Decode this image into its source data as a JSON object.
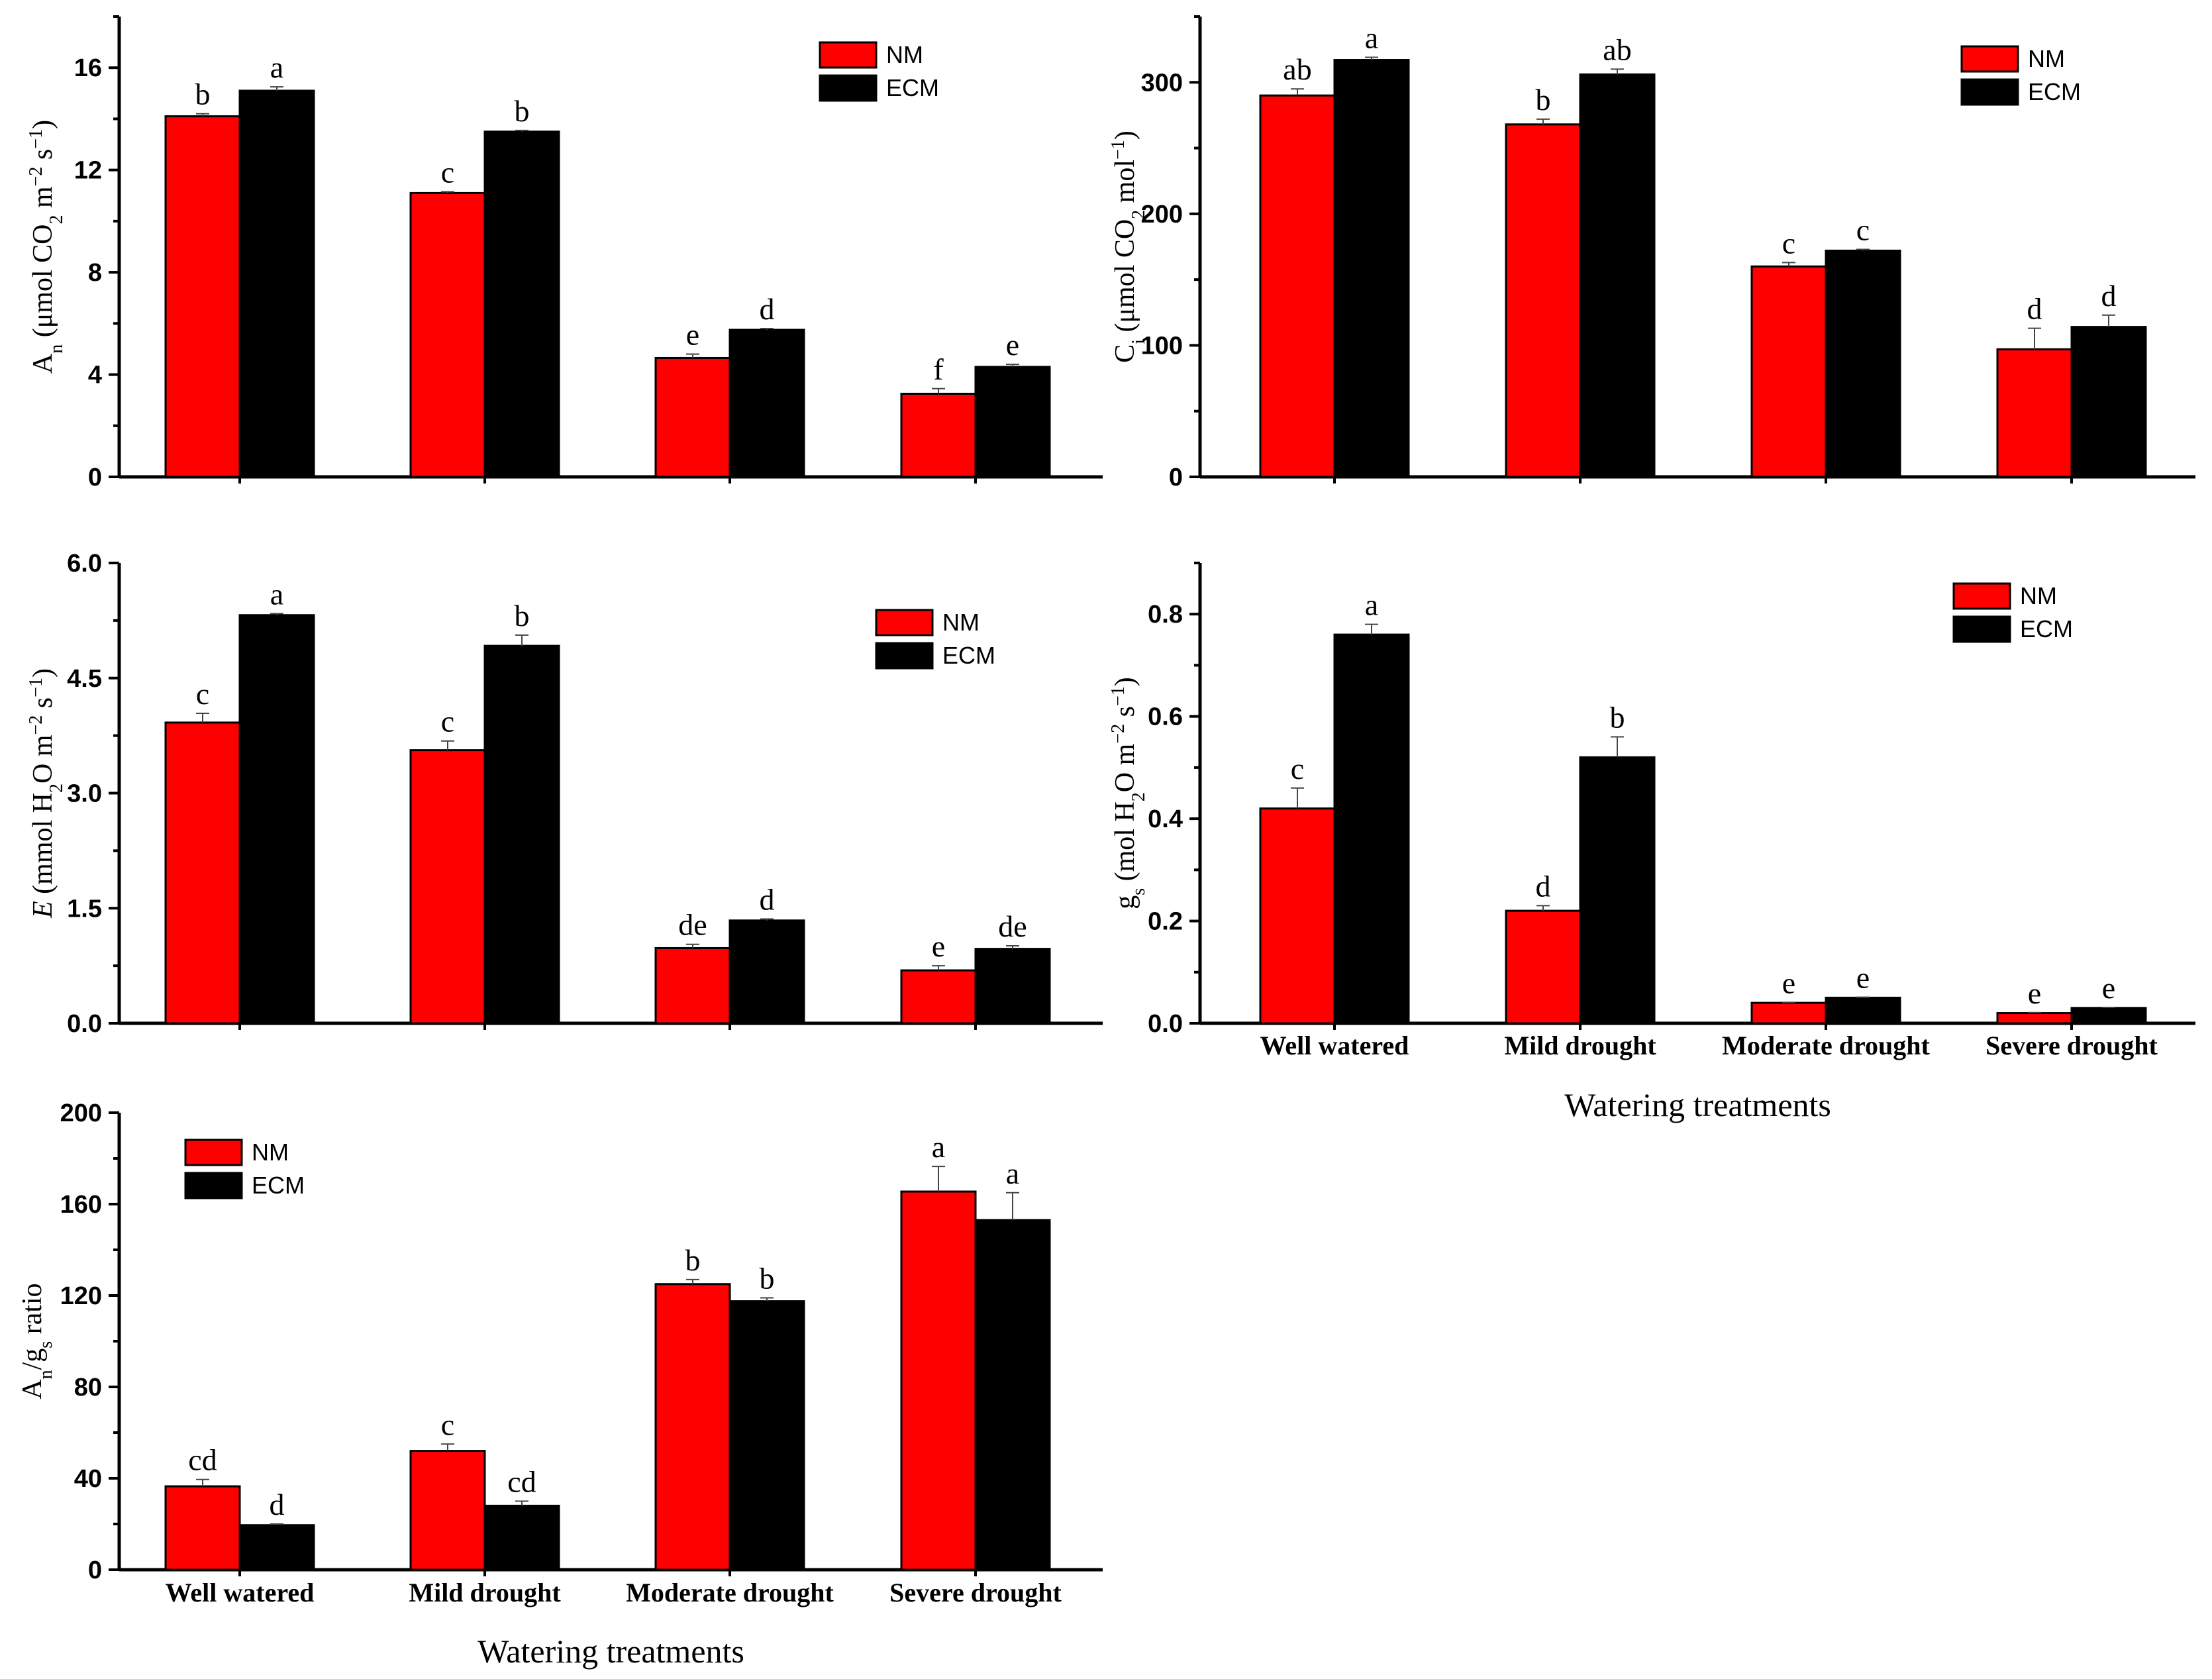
{
  "colors": {
    "NM": "#ff0000",
    "ECM": "#000000"
  },
  "chart_data": [
    {
      "id": "an",
      "type": "bar",
      "ylabel": "A_n (μmol CO_2 m^-2 s^-1)",
      "ylabel_parts": [
        "A",
        "n",
        " (μmol CO",
        "2",
        " m",
        "−2",
        " s",
        "−1",
        ")"
      ],
      "ylim": [
        0,
        18
      ],
      "yticks": [
        "0",
        "4",
        "8",
        "12",
        "16"
      ],
      "categories": [
        "Well watered",
        "Mild drought",
        "Moderate drought",
        "Severe drought"
      ],
      "series": [
        {
          "name": "NM",
          "values": [
            14.1,
            11.1,
            4.65,
            3.25
          ],
          "errors": [
            0.1,
            0.05,
            0.15,
            0.2
          ],
          "labels": [
            "b",
            "c",
            "e",
            "f"
          ]
        },
        {
          "name": "ECM",
          "values": [
            15.1,
            13.5,
            5.75,
            4.3
          ],
          "errors": [
            0.15,
            0.05,
            0.05,
            0.1
          ],
          "labels": [
            "a",
            "b",
            "d",
            "e"
          ]
        }
      ],
      "legend_position": "top-right"
    },
    {
      "id": "ci",
      "type": "bar",
      "ylabel": "C_i (μmol CO_2 mol^-1)",
      "ylabel_parts": [
        "C",
        "i",
        " (μmol CO",
        "2",
        " mol",
        "−1",
        ")"
      ],
      "ylim": [
        0,
        350
      ],
      "yticks": [
        "0",
        "100",
        "200",
        "300"
      ],
      "categories": [
        "Well watered",
        "Mild drought",
        "Moderate drought",
        "Severe drought"
      ],
      "series": [
        {
          "name": "NM",
          "values": [
            290,
            268,
            160,
            97
          ],
          "errors": [
            5,
            4,
            3,
            16
          ],
          "labels": [
            "ab",
            "b",
            "c",
            "d"
          ]
        },
        {
          "name": "ECM",
          "values": [
            317,
            306,
            172,
            114
          ],
          "errors": [
            2,
            4,
            1,
            9
          ],
          "labels": [
            "a",
            "ab",
            "c",
            "d"
          ]
        }
      ],
      "legend_position": "top-right"
    },
    {
      "id": "e",
      "type": "bar",
      "ylabel": "E (mmol H_2O m^-2 s^-1)",
      "ylabel_parts": [
        "E",
        " (mmol H",
        "2",
        "O m",
        "−2",
        " s",
        "−1",
        ")"
      ],
      "ylim": [
        0,
        6.0
      ],
      "yticks": [
        "0.0",
        "1.5",
        "3.0",
        "4.5",
        "6.0"
      ],
      "categories": [
        "Well watered",
        "Mild drought",
        "Moderate drought",
        "Severe drought"
      ],
      "series": [
        {
          "name": "NM",
          "values": [
            3.92,
            3.56,
            0.98,
            0.69
          ],
          "errors": [
            0.12,
            0.12,
            0.05,
            0.06
          ],
          "labels": [
            "c",
            "c",
            "de",
            "e"
          ]
        },
        {
          "name": "ECM",
          "values": [
            5.32,
            4.92,
            1.34,
            0.97
          ],
          "errors": [
            0.02,
            0.14,
            0.02,
            0.04
          ],
          "labels": [
            "a",
            "b",
            "d",
            "de"
          ]
        }
      ],
      "legend_position": "top-right"
    },
    {
      "id": "gs",
      "type": "bar",
      "ylabel": "g_s (mol H_2O m^-2 s^-1)",
      "ylabel_parts": [
        "g",
        "s",
        " (mol H",
        "2",
        "O m",
        "−2",
        " s",
        "−1",
        ")"
      ],
      "ylim": [
        0,
        0.9
      ],
      "yticks": [
        "0.0",
        "0.2",
        "0.4",
        "0.6",
        "0.8"
      ],
      "categories": [
        "Well watered",
        "Mild drought",
        "Moderate drought",
        "Severe drought"
      ],
      "xlabel": "Watering treatments",
      "series": [
        {
          "name": "NM",
          "values": [
            0.42,
            0.22,
            0.04,
            0.02
          ],
          "errors": [
            0.04,
            0.01,
            0.001,
            0.001
          ],
          "labels": [
            "c",
            "d",
            "e",
            "e"
          ]
        },
        {
          "name": "ECM",
          "values": [
            0.76,
            0.52,
            0.05,
            0.03
          ],
          "errors": [
            0.02,
            0.04,
            0.001,
            0.001
          ],
          "labels": [
            "a",
            "b",
            "e",
            "e"
          ]
        }
      ],
      "legend_position": "top-right"
    },
    {
      "id": "ratio",
      "type": "bar",
      "ylabel": "A_n/g_s ratio",
      "ylabel_parts": [
        "A",
        "n",
        "/g",
        "s",
        " ratio"
      ],
      "ylim": [
        0,
        200
      ],
      "yticks": [
        "0",
        "40",
        "80",
        "120",
        "160",
        "200"
      ],
      "categories": [
        "Well watered",
        "Mild drought",
        "Moderate drought",
        "Severe drought"
      ],
      "xlabel": "Watering treatments",
      "series": [
        {
          "name": "NM",
          "values": [
            36.5,
            52,
            125,
            165.5
          ],
          "errors": [
            3,
            3,
            2,
            11
          ],
          "labels": [
            "cd",
            "c",
            "b",
            "a"
          ]
        },
        {
          "name": "ECM",
          "values": [
            19.5,
            28,
            117.5,
            153
          ],
          "errors": [
            0.5,
            2,
            1.5,
            12
          ],
          "labels": [
            "d",
            "cd",
            "b",
            "a"
          ]
        }
      ],
      "legend_position": "top-left"
    }
  ]
}
